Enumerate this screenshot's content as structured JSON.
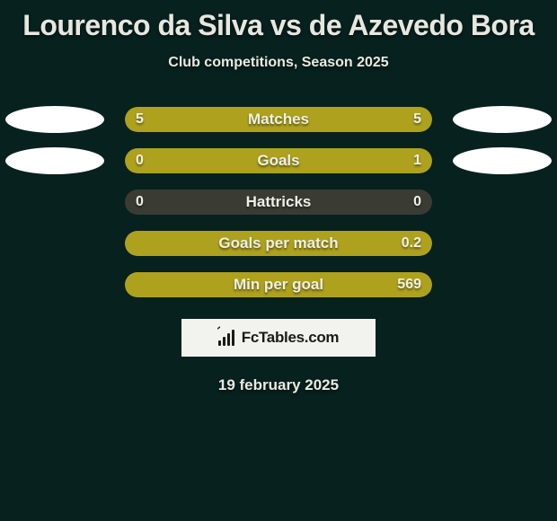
{
  "background_color": "#07211e",
  "title": {
    "text": "Lourenco da Silva vs de Azevedo Bora",
    "color": "#e6e7e0",
    "fontsize": 32
  },
  "subtitle": {
    "text": "Club competitions, Season 2025",
    "color": "#e9ebe3",
    "fontsize": 16
  },
  "player_left": {
    "color": "#ffffff"
  },
  "player_right": {
    "color": "#ffffff"
  },
  "stats": {
    "track_color": "#3a3c34",
    "left_fill_color": "#ada11e",
    "right_fill_color": "#ada11e",
    "label_color": "#eef0e8",
    "value_color": "#eef0e8",
    "rows": [
      {
        "label": "Matches",
        "left": "5",
        "right": "5",
        "left_pct": 50,
        "right_pct": 50,
        "show_ellipses": true
      },
      {
        "label": "Goals",
        "left": "0",
        "right": "1",
        "left_pct": 19,
        "right_pct": 81,
        "show_ellipses": true
      },
      {
        "label": "Hattricks",
        "left": "0",
        "right": "0",
        "left_pct": 0,
        "right_pct": 0,
        "show_ellipses": false
      },
      {
        "label": "Goals per match",
        "left": "",
        "right": "0.2",
        "left_pct": 0,
        "right_pct": 100,
        "show_ellipses": false
      },
      {
        "label": "Min per goal",
        "left": "",
        "right": "569",
        "left_pct": 0,
        "right_pct": 100,
        "show_ellipses": false
      }
    ]
  },
  "brand": {
    "box_bg": "#f2f3ee",
    "icon_color": "#1a1b17",
    "text_color": "#1a1b17",
    "text": "FcTables.com"
  },
  "date": {
    "text": "19 february 2025",
    "color": "#e9ebe3"
  }
}
